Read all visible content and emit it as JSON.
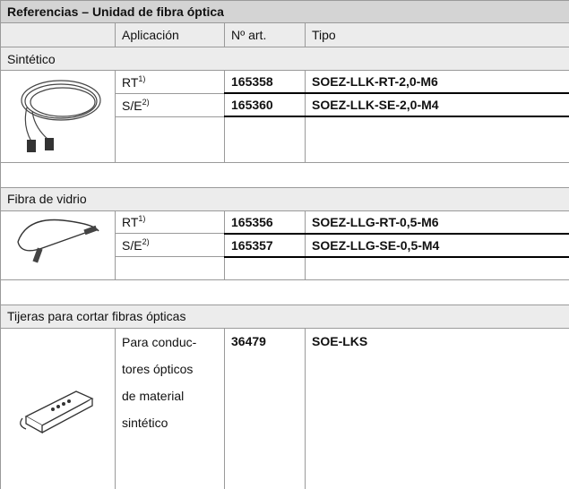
{
  "table": {
    "title": "Referencias – Unidad de fibra óptica",
    "header": [
      "Aplicación",
      "Nº art.",
      "Tipo"
    ],
    "sections": [
      {
        "name": "Sintético",
        "rows": [
          {
            "application": "RT",
            "note": "1)",
            "article": "165358",
            "type": "SOEZ-LLK-RT-2,0-M6"
          },
          {
            "application": "S/E",
            "note": "2)",
            "article": "165360",
            "type": "SOEZ-LLK-SE-2,0-M4"
          }
        ]
      },
      {
        "name": "Fibra de vidrio",
        "rows": [
          {
            "application": "RT",
            "note": "1)",
            "article": "165356",
            "type": "SOEZ-LLG-RT-0,5-M6"
          },
          {
            "application": "S/E",
            "note": "2)",
            "article": "165357",
            "type": "SOEZ-LLG-SE-0,5-M4"
          }
        ]
      },
      {
        "name": "Tijeras para cortar fibras ópticas",
        "rows": [
          {
            "application_lines": [
              "Para conduc-",
              "tores ópticos",
              "de material",
              "sintético"
            ],
            "article": "36479",
            "type": "SOE-LKS"
          }
        ]
      }
    ]
  }
}
